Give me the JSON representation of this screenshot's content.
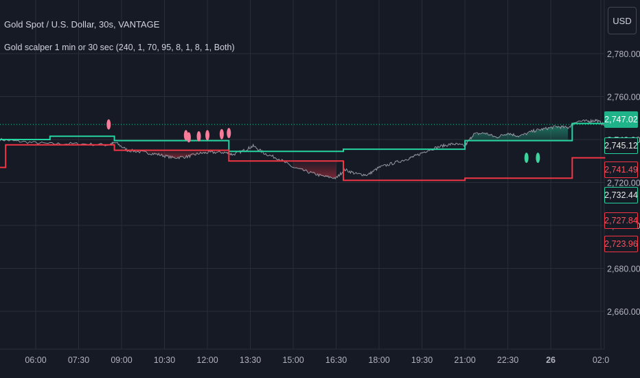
{
  "header": {
    "title": "Gold Spot / U.S. Dollar, 30s, VANTAGE",
    "indicator": "Gold scalper 1 min or 30 sec (240, 1, 70, 95, 8, 1, 8, 1, Both)",
    "currency_button": "USD"
  },
  "colors": {
    "background": "#161a25",
    "grid": "#2a2e39",
    "price_line": "#9598a1",
    "upper_band": "#26d4a0",
    "lower_band": "#f23645",
    "sell_marker": "#f77c99",
    "buy_marker": "#3dd39b"
  },
  "price_badges": [
    {
      "label": "2,747.02",
      "kind": "price"
    },
    {
      "label": "2,745.12",
      "kind": "green"
    },
    {
      "label": "2,741.49",
      "kind": "red"
    },
    {
      "label": "2,732.44",
      "kind": "green"
    },
    {
      "label": "2,727.84",
      "kind": "red"
    },
    {
      "label": "2,723.96",
      "kind": "red"
    }
  ],
  "chart_data": {
    "type": "line",
    "title": "Gold Spot / U.S. Dollar, 30s, VANTAGE",
    "y_tick_labels": [
      "2,780.00",
      "2,760.00",
      "2,740.00",
      "2,720.00",
      "2,700.00",
      "2,680.00",
      "2,660.00"
    ],
    "y_ticks": [
      2780,
      2760,
      2740,
      2720,
      2700,
      2680,
      2660
    ],
    "ylim": [
      2651,
      2784
    ],
    "x_tick_labels": [
      "06:00",
      "07:30",
      "09:00",
      "10:30",
      "12:00",
      "13:30",
      "15:00",
      "16:30",
      "18:00",
      "19:30",
      "21:00",
      "22:30",
      "26",
      "02:0"
    ],
    "x_tick_hours": [
      6,
      7.5,
      9,
      10.5,
      12,
      13.5,
      15,
      16.5,
      18,
      19.5,
      21,
      22.5,
      24,
      25.75
    ],
    "xlim": [
      4.75,
      25.9
    ],
    "grid": true,
    "last_price": 2747.02,
    "series": [
      {
        "x": [
          4.75,
          5.5,
          6.5,
          7.5,
          8.5,
          8.8,
          9.2,
          9.8,
          10.3,
          10.8,
          11.3,
          11.7,
          12.1,
          12.6,
          12.9,
          13.3,
          13.6,
          14.0,
          14.5,
          15.0,
          15.5,
          16.0,
          16.5,
          16.8,
          17.2,
          17.6,
          18.0,
          18.5,
          19.0,
          19.3,
          19.7,
          20.2,
          20.6,
          21.0,
          21.3,
          21.7,
          22.1,
          22.5,
          22.9,
          23.4,
          23.8,
          24.2,
          24.6,
          24.9,
          25.3,
          25.6,
          25.9
        ],
        "y": [
          2740,
          2739,
          2738,
          2738,
          2737.5,
          2738.5,
          2735,
          2734,
          2733,
          2731.5,
          2732,
          2733.5,
          2734,
          2734,
          2733,
          2735,
          2737,
          2733.5,
          2731,
          2727,
          2725,
          2723,
          2722,
          2726,
          2724,
          2723.5,
          2727,
          2729,
          2731,
          2732.5,
          2735,
          2737,
          2738,
          2737,
          2742.5,
          2743,
          2741,
          2743,
          2741.5,
          2744,
          2745,
          2746,
          2745.5,
          2748.5,
          2748.5,
          2749,
          2746.5
        ]
      },
      {
        "x": [
          4.75,
          6.5,
          6.5,
          8.75,
          8.75,
          12.75,
          12.75,
          16.75,
          16.75,
          21.0,
          21.0,
          24.75,
          24.75,
          25.9
        ],
        "y": [
          2740,
          2740,
          2741.5,
          2741.5,
          2739.5,
          2739.5,
          2734.5,
          2734.5,
          2735.5,
          2735.5,
          2739.5,
          2739.5,
          2747.5,
          2747.5
        ]
      },
      {
        "x": [
          4.75,
          4.95,
          4.95,
          8.75,
          8.75,
          12.75,
          12.75,
          16.75,
          16.75,
          21.0,
          21.0,
          24.75,
          24.75,
          25.9
        ],
        "y": [
          2727,
          2727,
          2737.5,
          2737.5,
          2735,
          2735,
          2730,
          2730,
          2721,
          2721,
          2722,
          2722,
          2731.5,
          2731.5
        ]
      }
    ],
    "markers": [
      {
        "x": 8.55,
        "y": 2747,
        "kind": "sell"
      },
      {
        "x": 11.25,
        "y": 2742,
        "kind": "sell"
      },
      {
        "x": 11.35,
        "y": 2741,
        "kind": "sell"
      },
      {
        "x": 11.7,
        "y": 2741.5,
        "kind": "sell"
      },
      {
        "x": 12.0,
        "y": 2742,
        "kind": "sell"
      },
      {
        "x": 12.5,
        "y": 2742.5,
        "kind": "sell"
      },
      {
        "x": 12.75,
        "y": 2743,
        "kind": "sell"
      },
      {
        "x": 23.15,
        "y": 2731.5,
        "kind": "buy"
      },
      {
        "x": 23.55,
        "y": 2731.5,
        "kind": "buy"
      }
    ]
  }
}
